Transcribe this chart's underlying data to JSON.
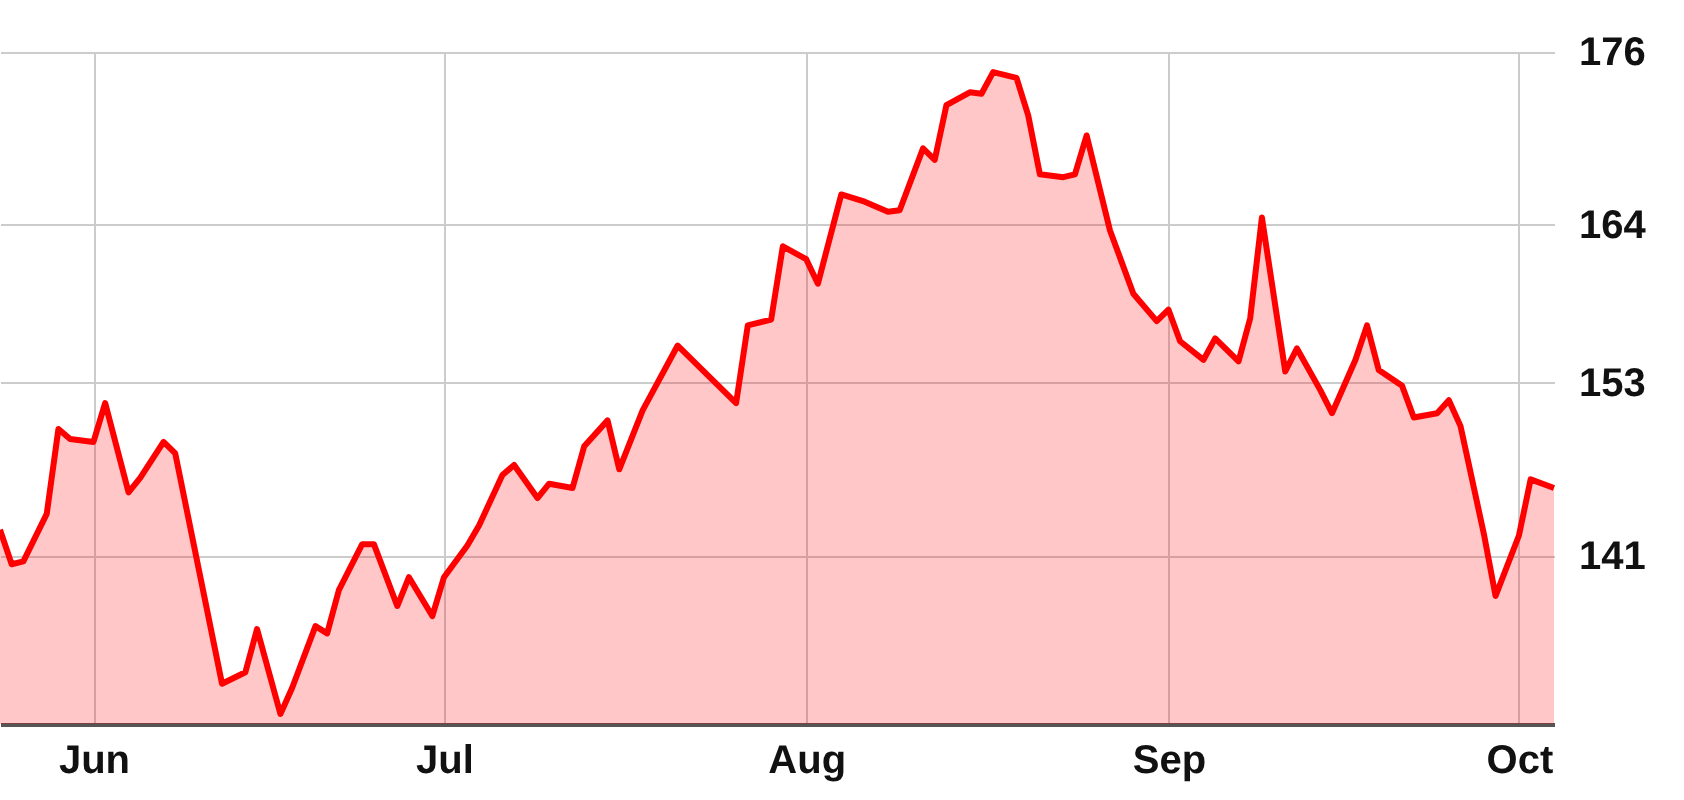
{
  "chart_data": {
    "type": "area",
    "x": [
      "--05-24",
      "--05-25",
      "--05-26",
      "--05-28",
      "--05-29",
      "--05-30",
      "--06-01",
      "--06-02",
      "--06-04",
      "--06-05",
      "--06-07",
      "--06-08",
      "--06-12",
      "--06-14",
      "--06-15",
      "--06-17",
      "--06-18",
      "--06-20",
      "--06-21",
      "--06-22",
      "--06-24",
      "--06-25",
      "--06-27",
      "--06-28",
      "--06-30",
      "--07-01",
      "--07-03",
      "--07-04",
      "--07-06",
      "--07-07",
      "--07-09",
      "--07-10",
      "--07-12",
      "--07-13",
      "--07-15",
      "--07-16",
      "--07-18",
      "--07-21",
      "--07-24",
      "--07-26",
      "--07-27",
      "--07-29",
      "--07-30",
      "--08-01",
      "--08-02",
      "--08-04",
      "--08-06",
      "--08-08",
      "--08-09",
      "--08-11",
      "--08-12",
      "--08-13",
      "--08-15",
      "--08-16",
      "--08-17",
      "--08-19",
      "--08-20",
      "--08-21",
      "--08-23",
      "--08-24",
      "--08-25",
      "--08-27",
      "--08-28",
      "--08-29",
      "--08-31",
      "--09-01",
      "--09-02",
      "--09-04",
      "--09-05",
      "--09-07",
      "--09-08",
      "--09-09",
      "--09-11",
      "--09-12",
      "--09-14",
      "--09-15",
      "--09-17",
      "--09-18",
      "--09-19",
      "--09-21",
      "--09-22",
      "--09-24",
      "--09-25",
      "--09-26",
      "--09-28",
      "--09-29",
      "--10-01",
      "--10-02",
      "--10-04"
    ],
    "series": [
      {
        "color": "#ff0000",
        "values": [
          142.8,
          140.4,
          140.6,
          143.9,
          149.8,
          149.1,
          148.9,
          151.6,
          145.4,
          146.4,
          148.9,
          148.1,
          132.1,
          132.9,
          135.9,
          130.0,
          131.8,
          136.1,
          135.6,
          138.6,
          141.8,
          141.8,
          137.5,
          139.5,
          136.8,
          139.5,
          141.7,
          143.1,
          146.6,
          147.3,
          145.0,
          146.0,
          145.7,
          148.6,
          150.4,
          147.0,
          151.1,
          155.6,
          153.2,
          151.6,
          157.0,
          157.4,
          162.5,
          161.6,
          159.9,
          166.1,
          165.6,
          164.9,
          165.0,
          169.3,
          168.5,
          172.3,
          173.2,
          173.1,
          174.6,
          174.2,
          171.6,
          167.5,
          167.3,
          167.5,
          170.2,
          163.6,
          161.4,
          159.2,
          157.3,
          158.1,
          155.9,
          154.6,
          156.1,
          154.5,
          157.5,
          164.5,
          153.8,
          155.4,
          152.5,
          150.9,
          154.6,
          157.0,
          153.9,
          152.8,
          150.6,
          150.9,
          151.8,
          150.0,
          142.5,
          138.2,
          142.4,
          146.3,
          145.7
        ]
      }
    ],
    "xlim": [
      "--05-24",
      "--10-04"
    ],
    "xticks": [
      {
        "value": "--06-01",
        "label": "Jun"
      },
      {
        "value": "--07-01",
        "label": "Jul"
      },
      {
        "value": "--08-01",
        "label": "Aug"
      },
      {
        "value": "--09-01",
        "label": "Sep"
      },
      {
        "value": "--10-01",
        "label": "Oct"
      }
    ],
    "ylim": [
      129.3,
      176
    ],
    "yticks": [
      141,
      153,
      164,
      176
    ],
    "grid": true
  }
}
